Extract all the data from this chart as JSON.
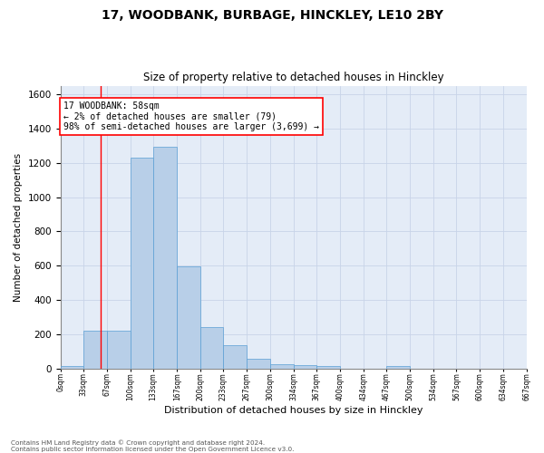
{
  "title": "17, WOODBANK, BURBAGE, HINCKLEY, LE10 2BY",
  "subtitle": "Size of property relative to detached houses in Hinckley",
  "xlabel": "Distribution of detached houses by size in Hinckley",
  "ylabel": "Number of detached properties",
  "footnote1": "Contains HM Land Registry data © Crown copyright and database right 2024.",
  "footnote2": "Contains public sector information licensed under the Open Government Licence v3.0.",
  "bar_edges": [
    0,
    33,
    67,
    100,
    133,
    167,
    200,
    233,
    267,
    300,
    334,
    367,
    400,
    434,
    467,
    500,
    534,
    567,
    600,
    634,
    667
  ],
  "bar_heights": [
    15,
    220,
    220,
    1230,
    1295,
    595,
    240,
    137,
    55,
    27,
    22,
    15,
    0,
    0,
    15,
    0,
    0,
    0,
    0,
    0
  ],
  "bar_color": "#b8cfe8",
  "bar_edgecolor": "#5a9fd4",
  "grid_color": "#c8d4e8",
  "background_color": "#e4ecf7",
  "red_line_x": 58,
  "annotation_text1": "17 WOODBANK: 58sqm",
  "annotation_text2": "← 2% of detached houses are smaller (79)",
  "annotation_text3": "98% of semi-detached houses are larger (3,699) →",
  "ylim": [
    0,
    1650
  ],
  "yticks": [
    0,
    200,
    400,
    600,
    800,
    1000,
    1200,
    1400,
    1600
  ],
  "tick_labels": [
    "0sqm",
    "33sqm",
    "67sqm",
    "100sqm",
    "133sqm",
    "167sqm",
    "200sqm",
    "233sqm",
    "267sqm",
    "300sqm",
    "334sqm",
    "367sqm",
    "400sqm",
    "434sqm",
    "467sqm",
    "500sqm",
    "534sqm",
    "567sqm",
    "600sqm",
    "634sqm",
    "667sqm"
  ]
}
